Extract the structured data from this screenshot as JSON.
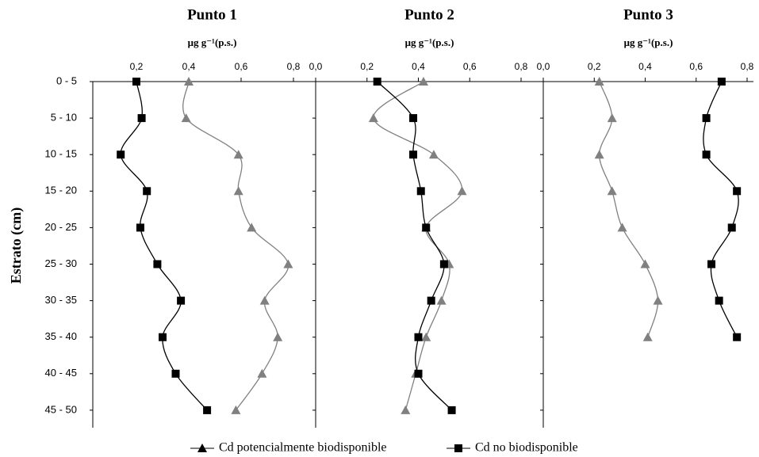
{
  "chart_data": [
    {
      "type": "line",
      "title": "Punto 1",
      "xlabel": "μg g⁻¹(p.s.)",
      "ylabel": "Estrato  (cm)",
      "categories": [
        "0 - 5",
        "5 - 10",
        "10 - 15",
        "15 - 20",
        "20 - 25",
        "25 - 30",
        "30 - 35",
        "35 - 40",
        "40 - 45",
        "45 - 50"
      ],
      "xlim": [
        0,
        0.8
      ],
      "xticks": [
        {
          "value": 0.2,
          "label": "0,2"
        },
        {
          "value": 0.4,
          "label": "0,4"
        },
        {
          "value": 0.6,
          "label": "0,6"
        },
        {
          "value": 0.8,
          "label": "0,8"
        }
      ],
      "series": [
        {
          "name": "Cd potencialmente biodisponible",
          "color": "#808080",
          "marker": "triangle",
          "values": [
            0.4,
            0.39,
            0.59,
            0.59,
            0.64,
            0.78,
            0.69,
            0.74,
            0.68,
            0.58
          ]
        },
        {
          "name": "Cd no biodisponible",
          "color": "#000000",
          "marker": "square",
          "values": [
            0.2,
            0.22,
            0.14,
            0.24,
            0.215,
            0.28,
            0.37,
            0.3,
            0.35,
            0.47
          ]
        }
      ]
    },
    {
      "type": "line",
      "title": "Punto 2",
      "xlabel": "μg g⁻¹(p.s.)",
      "xlim": [
        0,
        0.8
      ],
      "xticks": [
        {
          "value": 0,
          "label": "0,0"
        },
        {
          "value": 0.2,
          "label": "0,2"
        },
        {
          "value": 0.4,
          "label": "0,4"
        },
        {
          "value": 0.6,
          "label": "0,6"
        },
        {
          "value": 0.8,
          "label": "0,8"
        }
      ],
      "series": [
        {
          "color": "#808080",
          "marker": "triangle",
          "values": [
            0.42,
            0.225,
            0.46,
            0.57,
            0.43,
            0.52,
            0.49,
            0.43,
            0.39,
            0.35
          ]
        },
        {
          "color": "#000000",
          "marker": "square",
          "values": [
            0.24,
            0.38,
            0.38,
            0.41,
            0.43,
            0.5,
            0.45,
            0.4,
            0.4,
            0.53
          ]
        }
      ]
    },
    {
      "type": "line",
      "title": "Punto 3",
      "xlabel": "μg g⁻¹(p.s.)",
      "xlim": [
        0,
        0.8
      ],
      "xticks": [
        {
          "value": 0,
          "label": "0,0"
        },
        {
          "value": 0.2,
          "label": "0,2"
        },
        {
          "value": 0.4,
          "label": "0,4"
        },
        {
          "value": 0.6,
          "label": "0,6"
        },
        {
          "value": 0.8,
          "label": "0,8"
        }
      ],
      "series": [
        {
          "color": "#808080",
          "marker": "triangle",
          "values": [
            0.22,
            0.27,
            0.22,
            0.27,
            0.31,
            0.4,
            0.45,
            0.41,
            null,
            null
          ]
        },
        {
          "color": "#000000",
          "marker": "square",
          "values": [
            0.7,
            0.64,
            0.64,
            0.76,
            0.74,
            0.66,
            0.69,
            0.76,
            null,
            null
          ]
        }
      ]
    }
  ]
}
